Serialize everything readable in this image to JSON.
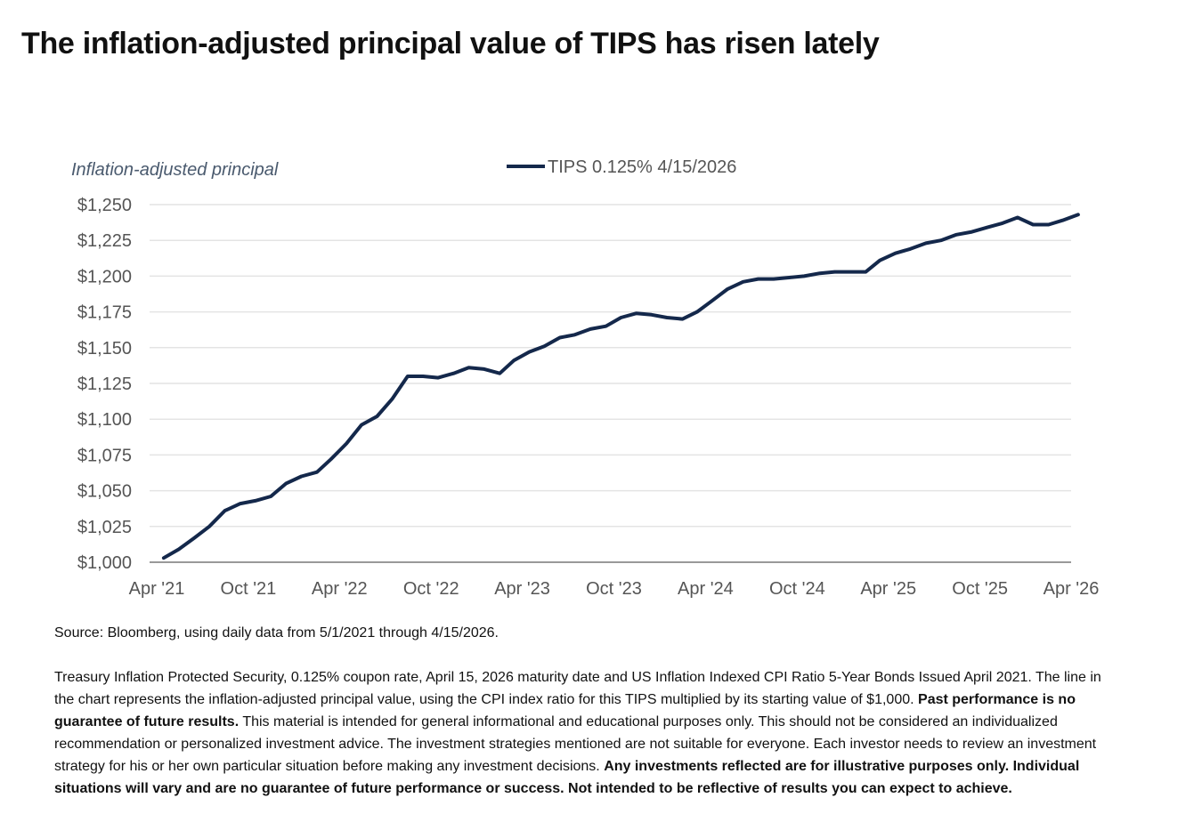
{
  "title": "The inflation-adjusted principal value of TIPS has risen lately",
  "source": "Source: Bloomberg, using daily data from 5/1/2021 through 4/15/2026.",
  "disclaimer": {
    "part1": "Treasury Inflation Protected Security, 0.125% coupon rate, April 15, 2026 maturity date and US Inflation Indexed CPI Ratio 5-Year Bonds Issued April 2021. The line in the chart represents the inflation-adjusted principal value, using the CPI index ratio for this TIPS multiplied by its starting value of $1,000. ",
    "bold1": "Past performance is no guarantee of future results.",
    "part2": " This material is intended for general informational and educational purposes only. This should not be considered an individualized recommendation or personalized investment advice. The investment strategies mentioned are not suitable for everyone. Each investor needs to review an investment strategy for his or her own particular situation before making any investment decisions. ",
    "bold2": "Any investments reflected are for illustrative purposes only. Individual situations will vary and are no guarantee of future performance or success. Not intended to be reflective of results you can expect to achieve."
  },
  "chart_data": {
    "type": "line",
    "ylabel": "Inflation-adjusted principal",
    "ylim": [
      1000,
      1250
    ],
    "yticks": [
      1000,
      1025,
      1050,
      1075,
      1100,
      1125,
      1150,
      1175,
      1200,
      1225,
      1250
    ],
    "ytick_labels": [
      "$1,000",
      "$1,025",
      "$1,050",
      "$1,075",
      "$1,100",
      "$1,125",
      "$1,150",
      "$1,175",
      "$1,200",
      "$1,225",
      "$1,250"
    ],
    "xlim": [
      "2021-04-01",
      "2026-04-01"
    ],
    "xticks": [
      "2021-04-01",
      "2021-10-01",
      "2022-04-01",
      "2022-10-01",
      "2023-04-01",
      "2023-10-01",
      "2024-04-01",
      "2024-10-01",
      "2025-04-01",
      "2025-10-01",
      "2026-04-01"
    ],
    "xtick_labels": [
      "Apr '21",
      "Oct '21",
      "Apr '22",
      "Oct '22",
      "Apr '23",
      "Oct '23",
      "Apr '24",
      "Oct '24",
      "Apr '25",
      "Oct '25",
      "Apr '26"
    ],
    "grid": true,
    "legend_position": "top-center",
    "color": "#14284b",
    "series": [
      {
        "name": "TIPS 0.125% 4/15/2026",
        "points": [
          [
            "2021-04-15",
            1003
          ],
          [
            "2021-05-15",
            1009
          ],
          [
            "2021-06-15",
            1017
          ],
          [
            "2021-07-15",
            1025
          ],
          [
            "2021-08-15",
            1036
          ],
          [
            "2021-09-15",
            1041
          ],
          [
            "2021-10-15",
            1043
          ],
          [
            "2021-11-15",
            1046
          ],
          [
            "2021-12-15",
            1055
          ],
          [
            "2022-01-15",
            1060
          ],
          [
            "2022-02-15",
            1063
          ],
          [
            "2022-03-15",
            1072
          ],
          [
            "2022-04-15",
            1083
          ],
          [
            "2022-05-15",
            1096
          ],
          [
            "2022-06-15",
            1102
          ],
          [
            "2022-07-15",
            1114
          ],
          [
            "2022-08-15",
            1130
          ],
          [
            "2022-09-15",
            1130
          ],
          [
            "2022-10-15",
            1129
          ],
          [
            "2022-11-15",
            1132
          ],
          [
            "2022-12-15",
            1136
          ],
          [
            "2023-01-15",
            1135
          ],
          [
            "2023-02-15",
            1132
          ],
          [
            "2023-03-15",
            1141
          ],
          [
            "2023-04-15",
            1147
          ],
          [
            "2023-05-15",
            1151
          ],
          [
            "2023-06-15",
            1157
          ],
          [
            "2023-07-15",
            1159
          ],
          [
            "2023-08-15",
            1163
          ],
          [
            "2023-09-15",
            1165
          ],
          [
            "2023-10-15",
            1171
          ],
          [
            "2023-11-15",
            1174
          ],
          [
            "2023-12-15",
            1173
          ],
          [
            "2024-01-15",
            1171
          ],
          [
            "2024-02-15",
            1170
          ],
          [
            "2024-03-15",
            1175
          ],
          [
            "2024-04-15",
            1183
          ],
          [
            "2024-05-15",
            1191
          ],
          [
            "2024-06-15",
            1196
          ],
          [
            "2024-07-15",
            1198
          ],
          [
            "2024-08-15",
            1198
          ],
          [
            "2024-09-15",
            1199
          ],
          [
            "2024-10-15",
            1200
          ],
          [
            "2024-11-15",
            1202
          ],
          [
            "2024-12-15",
            1203
          ],
          [
            "2025-01-15",
            1203
          ],
          [
            "2025-02-15",
            1203
          ],
          [
            "2025-03-15",
            1211
          ],
          [
            "2025-04-15",
            1216
          ],
          [
            "2025-05-15",
            1219
          ],
          [
            "2025-06-15",
            1223
          ],
          [
            "2025-07-15",
            1225
          ],
          [
            "2025-08-15",
            1229
          ],
          [
            "2025-09-15",
            1231
          ],
          [
            "2025-10-15",
            1234
          ],
          [
            "2025-11-15",
            1237
          ],
          [
            "2025-12-15",
            1241
          ],
          [
            "2026-01-15",
            1236
          ],
          [
            "2026-02-15",
            1236
          ],
          [
            "2026-03-15",
            1239
          ],
          [
            "2026-04-15",
            1243
          ]
        ]
      }
    ]
  }
}
